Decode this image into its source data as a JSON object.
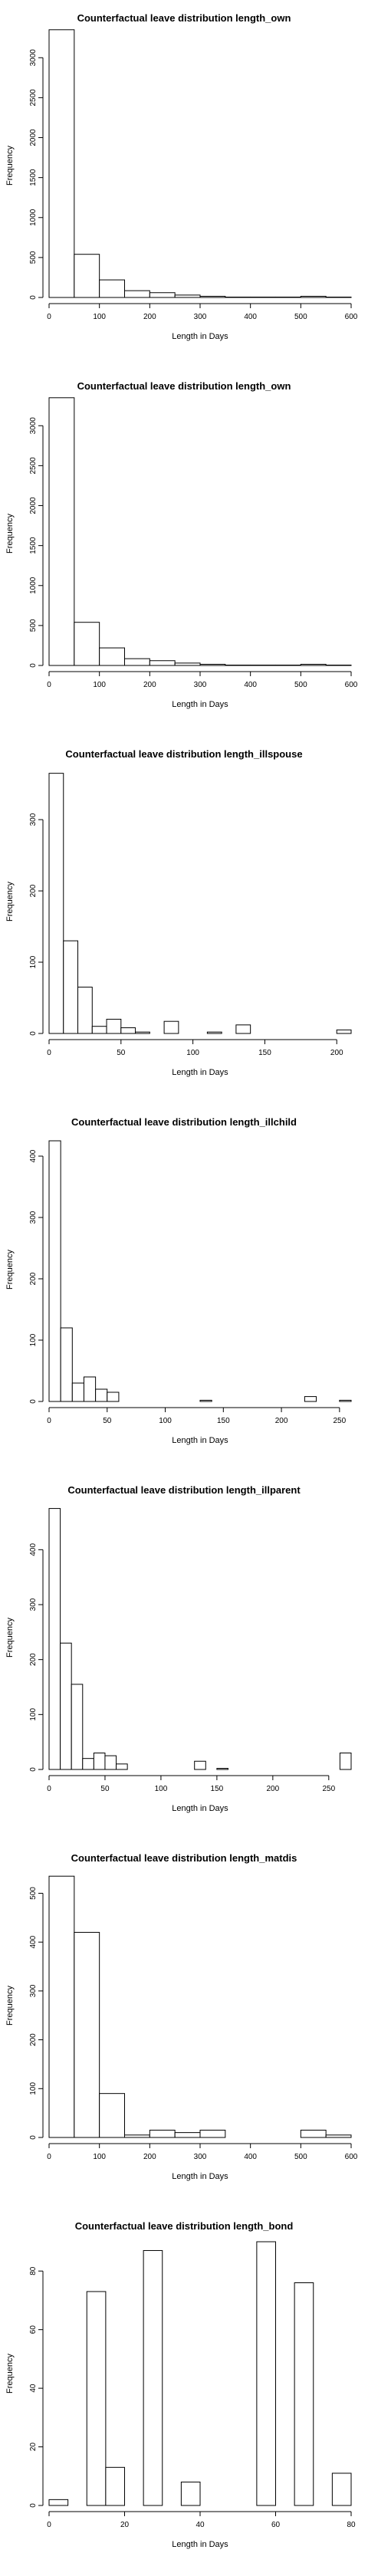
{
  "chart_data": [
    {
      "type": "bar",
      "title": "Counterfactual leave distribution length_own",
      "xlabel": "Length in Days",
      "ylabel": "Frequency",
      "xlim": [
        0,
        600
      ],
      "ylim": [
        0,
        3300
      ],
      "x_ticks": [
        0,
        100,
        200,
        300,
        400,
        500,
        600
      ],
      "y_ticks": [
        0,
        500,
        1000,
        1500,
        2000,
        2500,
        3000
      ],
      "bin_edges": [
        0,
        50,
        100,
        150,
        200,
        250,
        300,
        350,
        400,
        450,
        500,
        550,
        600
      ],
      "values": [
        3350,
        540,
        220,
        85,
        60,
        30,
        15,
        5,
        5,
        5,
        15,
        5
      ]
    },
    {
      "type": "bar",
      "title": "Counterfactual leave distribution length_own",
      "xlabel": "Length in Days",
      "ylabel": "Frequency",
      "xlim": [
        0,
        600
      ],
      "ylim": [
        0,
        3300
      ],
      "x_ticks": [
        0,
        100,
        200,
        300,
        400,
        500,
        600
      ],
      "y_ticks": [
        0,
        500,
        1000,
        1500,
        2000,
        2500,
        3000
      ],
      "bin_edges": [
        0,
        50,
        100,
        150,
        200,
        250,
        300,
        350,
        400,
        450,
        500,
        550,
        600
      ],
      "values": [
        3350,
        540,
        220,
        85,
        60,
        30,
        15,
        5,
        5,
        5,
        15,
        5
      ]
    },
    {
      "type": "bar",
      "title": "Counterfactual leave distribution length_illspouse",
      "xlabel": "Length in Days",
      "ylabel": "Frequency",
      "xlim": [
        0,
        210
      ],
      "ylim": [
        0,
        370
      ],
      "x_ticks": [
        0,
        50,
        100,
        150,
        200
      ],
      "y_ticks": [
        0,
        100,
        200,
        300
      ],
      "bin_edges": [
        0,
        10,
        20,
        30,
        40,
        50,
        60,
        70,
        80,
        90,
        100,
        110,
        120,
        130,
        140,
        150,
        160,
        170,
        180,
        190,
        200,
        210
      ],
      "values": [
        365,
        130,
        65,
        10,
        20,
        8,
        2,
        0,
        17,
        0,
        0,
        2,
        0,
        12,
        0,
        0,
        0,
        0,
        0,
        0,
        5
      ]
    },
    {
      "type": "bar",
      "title": "Counterfactual leave distribution length_illchild",
      "xlabel": "Length in Days",
      "ylabel": "Frequency",
      "xlim": [
        0,
        260
      ],
      "ylim": [
        0,
        430
      ],
      "x_ticks": [
        0,
        50,
        100,
        150,
        200,
        250
      ],
      "y_ticks": [
        0,
        100,
        200,
        300,
        400
      ],
      "bin_edges": [
        0,
        10,
        20,
        30,
        40,
        50,
        60,
        70,
        80,
        90,
        100,
        110,
        120,
        130,
        140,
        150,
        160,
        170,
        180,
        190,
        200,
        210,
        220,
        230,
        240,
        250,
        260
      ],
      "values": [
        425,
        120,
        30,
        40,
        20,
        15,
        0,
        0,
        0,
        0,
        0,
        0,
        0,
        2,
        0,
        0,
        0,
        0,
        0,
        0,
        0,
        0,
        8,
        0,
        0,
        2
      ]
    },
    {
      "type": "bar",
      "title": "Counterfactual leave distribution length_illparent",
      "xlabel": "Length in Days",
      "ylabel": "Frequency",
      "xlim": [
        0,
        270
      ],
      "ylim": [
        0,
        480
      ],
      "x_ticks": [
        0,
        50,
        100,
        150,
        200,
        250
      ],
      "y_ticks": [
        0,
        100,
        200,
        300,
        400
      ],
      "bin_edges": [
        0,
        10,
        20,
        30,
        40,
        50,
        60,
        70,
        80,
        90,
        100,
        110,
        120,
        130,
        140,
        150,
        160,
        170,
        180,
        190,
        200,
        210,
        220,
        230,
        240,
        250,
        260,
        270
      ],
      "values": [
        475,
        230,
        155,
        20,
        30,
        25,
        10,
        0,
        0,
        0,
        0,
        0,
        0,
        15,
        0,
        2,
        0,
        0,
        0,
        0,
        0,
        0,
        0,
        0,
        0,
        0,
        30
      ]
    },
    {
      "type": "bar",
      "title": "Counterfactual leave distribution length_matdis",
      "xlabel": "Length in Days",
      "ylabel": "Frequency",
      "xlim": [
        0,
        600
      ],
      "ylim": [
        0,
        540
      ],
      "x_ticks": [
        0,
        100,
        200,
        300,
        400,
        500,
        600
      ],
      "y_ticks": [
        0,
        100,
        200,
        300,
        400,
        500
      ],
      "bin_edges": [
        0,
        50,
        100,
        150,
        200,
        250,
        300,
        350,
        400,
        450,
        500,
        550,
        600
      ],
      "values": [
        535,
        420,
        90,
        5,
        15,
        10,
        15,
        0,
        0,
        0,
        15,
        5
      ]
    },
    {
      "type": "bar",
      "title": "Counterfactual leave distribution length_bond",
      "xlabel": "Length in Days",
      "ylabel": "Frequency",
      "xlim": [
        0,
        80
      ],
      "ylim": [
        0,
        90
      ],
      "x_ticks": [
        0,
        20,
        40,
        60,
        80
      ],
      "y_ticks": [
        0,
        20,
        40,
        60,
        80
      ],
      "bin_edges": [
        0,
        5,
        10,
        15,
        20,
        25,
        30,
        35,
        40,
        45,
        50,
        55,
        60,
        65,
        70,
        75,
        80
      ],
      "values": [
        2,
        0,
        73,
        13,
        0,
        87,
        0,
        8,
        0,
        0,
        0,
        90,
        0,
        76,
        0,
        11
      ]
    }
  ]
}
